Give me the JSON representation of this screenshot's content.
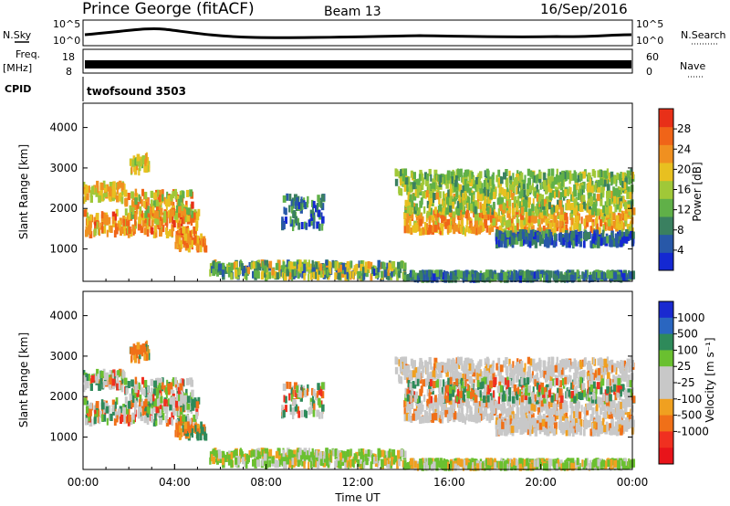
{
  "header": {
    "station": "Prince George (fitACF)",
    "beam": "Beam 13",
    "date": "16/Sep/2016"
  },
  "strip": {
    "nsky_label": "N.Sky",
    "nsearch_label": "N.Search",
    "ticks_left": [
      "10^5",
      "10^0"
    ],
    "ticks_right": [
      "10^5",
      "10^0"
    ],
    "freq_label": "Freq.",
    "freq_unit": "[MHz]",
    "freq_ticks": [
      "18",
      "8"
    ],
    "nave_label": "Nave",
    "nave_ticks": [
      "60",
      "0"
    ],
    "cpid_label": "CPID",
    "cpid_value": "twofsound 3503"
  },
  "colors": {
    "power_scale": [
      "#1428d2",
      "#2858a8",
      "#3a8060",
      "#60b048",
      "#a0c838",
      "#e8c020",
      "#f09020",
      "#f06418",
      "#e83018"
    ],
    "velocity_scale": [
      "#1a2ad0",
      "#2a66c0",
      "#2e8a5a",
      "#6ac030",
      "#c8c8c8",
      "#c8c8c8",
      "#f0a020",
      "#f07018",
      "#f03020",
      "#e8141a"
    ]
  },
  "chart_data": [
    {
      "type": "heatmap",
      "name": "power",
      "ylabel": "Slant Range [km]",
      "yticks": [
        "4000",
        "3000",
        "2000",
        "1000"
      ],
      "ylim": [
        200,
        4600
      ],
      "xlim": [
        0,
        24
      ],
      "colorbar_label": "Power [dB]",
      "colorbar_ticks": [
        "28",
        "24",
        "20",
        "16",
        "12",
        "8",
        "4"
      ],
      "colorbar_range": [
        0,
        32
      ]
    },
    {
      "type": "heatmap",
      "name": "velocity",
      "ylabel": "Slant Range [km]",
      "yticks": [
        "4000",
        "3000",
        "2000",
        "1000"
      ],
      "ylim": [
        200,
        4600
      ],
      "xlim": [
        0,
        24
      ],
      "xlabel": "Time UT",
      "xticks": [
        "00:00",
        "04:00",
        "08:00",
        "12:00",
        "16:00",
        "20:00",
        "00:00"
      ],
      "colorbar_label": "Velocity [m s⁻¹]",
      "colorbar_ticks": [
        "1000",
        "500",
        "100",
        "25",
        "-25",
        "-100",
        "-500",
        "-1000"
      ]
    }
  ]
}
